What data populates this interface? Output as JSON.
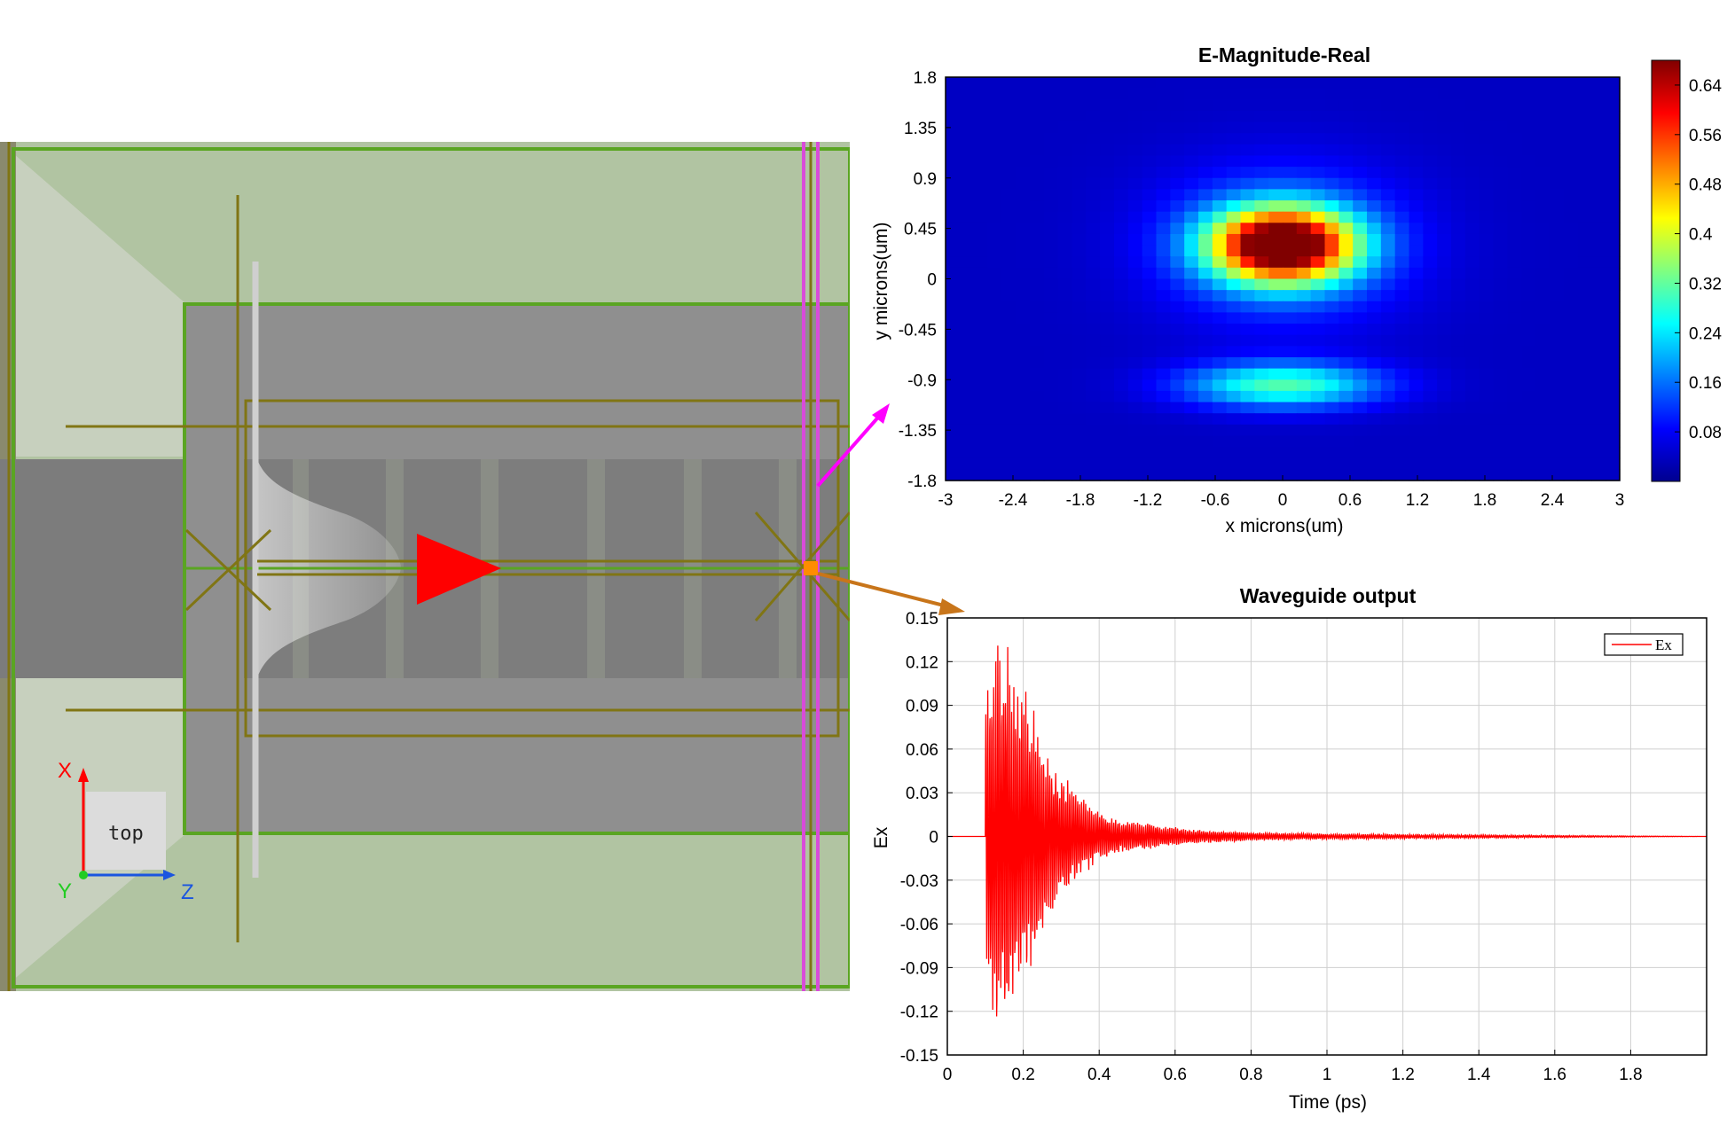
{
  "viewport": {
    "view_label": "top",
    "axes": {
      "x": "X",
      "y": "Y",
      "z": "Z"
    },
    "colors": {
      "substrate": "#b1c4a2",
      "cladding": "#8f8f8f",
      "waveguide": "#7d7d7d",
      "outline_green": "#5aa522",
      "outline_olive": "#807514",
      "monitor_magenta": "#d94bd9",
      "source_arrow": "#ff0000"
    }
  },
  "heatmap": {
    "chart_data": {
      "type": "heatmap",
      "title": "E-Magnitude-Real",
      "xlabel": "x microns(um)",
      "ylabel": "y microns(um)",
      "xlim": [
        -3,
        3
      ],
      "ylim": [
        -1.8,
        1.8
      ],
      "x_ticks": [
        "-3",
        "-2.4",
        "-1.8",
        "-1.2",
        "-0.6",
        "0",
        "0.6",
        "1.2",
        "1.8",
        "2.4",
        "3"
      ],
      "y_ticks": [
        "1.8",
        "1.35",
        "0.9",
        "0.45",
        "0",
        "-0.45",
        "-0.9",
        "-1.35",
        "-1.8"
      ],
      "colorbar_ticks": [
        "0.64",
        "0.56",
        "0.48",
        "0.4",
        "0.32",
        "0.24",
        "0.16",
        "0.08"
      ],
      "colorbar_range": [
        0,
        0.68
      ],
      "colormap": "jet",
      "lobes": [
        {
          "x0": 0,
          "y0": 0.3,
          "sx": 0.62,
          "sy": 0.32,
          "peak": 0.66
        },
        {
          "x0": 0,
          "y0": -0.95,
          "sx": 0.85,
          "sy": 0.2,
          "peak": 0.26
        },
        {
          "x0": 0,
          "y0": 0.3,
          "sx": 1.05,
          "sy": 0.65,
          "peak": 0.14
        }
      ],
      "background": 0.045
    }
  },
  "line": {
    "chart_data": {
      "type": "line",
      "title": "Waveguide output",
      "xlabel": "Time (ps)",
      "ylabel": "Ex",
      "xlim": [
        0,
        2
      ],
      "ylim": [
        -0.15,
        0.15
      ],
      "x_ticks": [
        "0",
        "0.2",
        "0.4",
        "0.6",
        "0.8",
        "1",
        "1.2",
        "1.4",
        "1.6",
        "1.8"
      ],
      "y_ticks": [
        "0.15",
        "0.12",
        "0.09",
        "0.06",
        "0.03",
        "0",
        "-0.03",
        "-0.06",
        "-0.09",
        "-0.12",
        "-0.15"
      ],
      "grid": true,
      "legend_position": "top-right",
      "series": [
        {
          "name": "Ex",
          "color": "#ff0000",
          "onset_ps": 0.1,
          "peak_ps": 0.15,
          "peak_amplitude": 0.145,
          "envelope": [
            [
              0.1,
              0.1
            ],
            [
              0.13,
              0.14
            ],
            [
              0.15,
              0.145
            ],
            [
              0.18,
              0.105
            ],
            [
              0.22,
              0.1
            ],
            [
              0.26,
              0.055
            ],
            [
              0.3,
              0.045
            ],
            [
              0.35,
              0.03
            ],
            [
              0.4,
              0.018
            ],
            [
              0.45,
              0.012
            ],
            [
              0.55,
              0.008
            ],
            [
              0.65,
              0.005
            ],
            [
              0.8,
              0.003
            ],
            [
              1.0,
              0.002
            ],
            [
              1.5,
              0.001
            ],
            [
              2.0,
              0.0
            ]
          ]
        }
      ]
    }
  }
}
